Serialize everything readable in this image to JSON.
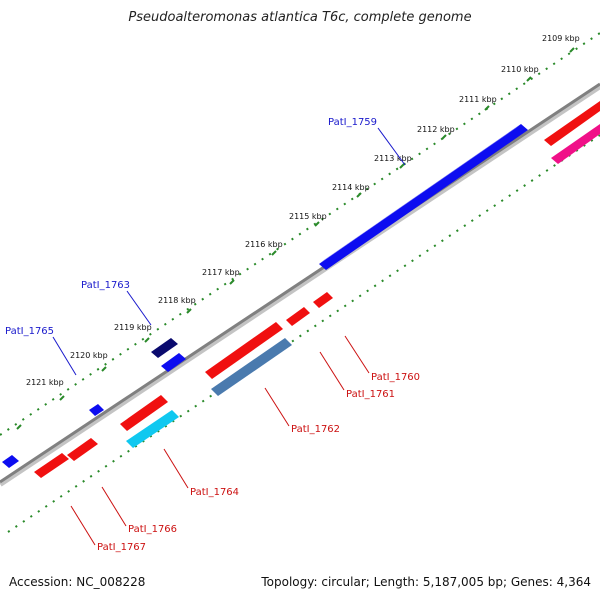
{
  "title": "Pseudoalteromonas atlantica T6c, complete genome",
  "footer": {
    "accession": "Accession: NC_008228",
    "summary": "Topology: circular; Length: 5,187,005 bp; Genes: 4,364"
  },
  "tick_labels": [
    "2109 kbp",
    "2110 kbp",
    "2111 kbp",
    "2112 kbp",
    "2113 kbp",
    "2114 kbp",
    "2115 kbp",
    "2116 kbp",
    "2117 kbp",
    "2118 kbp",
    "2119 kbp",
    "2120 kbp",
    "2121 kbp"
  ],
  "gene_labels_forward": [
    "PatI_1759",
    "PatI_1763",
    "PatI_1765"
  ],
  "gene_labels_reverse": [
    "PatI_1760",
    "PatI_1761",
    "PatI_1762",
    "PatI_1764",
    "PatI_1766",
    "PatI_1767"
  ],
  "colors": {
    "backbone": "#808080",
    "tick_dots": "#2a8a2a",
    "gene_blue": "#0d0df0",
    "gene_navy": "#0a0a6e",
    "gene_red": "#f01010",
    "gene_steel": "#4a7aae",
    "gene_cyan": "#10c8f0",
    "gene_pink": "#f01088",
    "label_forward": "#1a1acc",
    "label_reverse": "#cc1111"
  }
}
